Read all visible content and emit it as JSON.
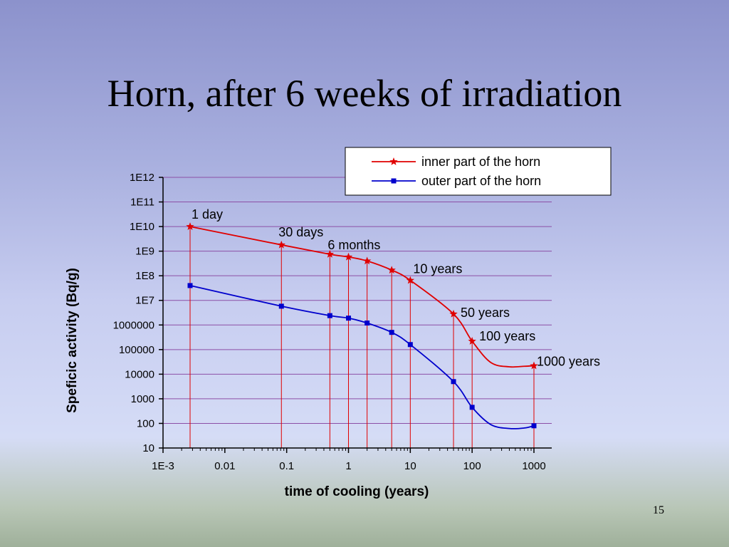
{
  "slide": {
    "title": "Horn, after 6 weeks of irradiation",
    "page_number": "15"
  },
  "chart_data": {
    "type": "line",
    "xscale": "log",
    "yscale": "log",
    "xlabel": "time of cooling (years)",
    "ylabel": "Speficic activity (Bq/g)",
    "xlim": [
      0.001,
      1000
    ],
    "ylim": [
      10,
      1000000000000.0
    ],
    "x_tick_values": [
      0.001,
      0.01,
      0.1,
      1,
      10,
      100,
      1000
    ],
    "x_tick_labels": [
      "1E-3",
      "0.01",
      "0.1",
      "1",
      "10",
      "100",
      "1000"
    ],
    "y_tick_values": [
      10,
      100,
      1000,
      10000,
      100000,
      1000000,
      10000000.0,
      100000000.0,
      1000000000.0,
      10000000000.0,
      100000000000.0,
      1000000000000.0
    ],
    "y_tick_labels": [
      "10",
      "100",
      "1000",
      "10000",
      "100000",
      "1000000",
      "1E7",
      "1E8",
      "1E9",
      "1E10",
      "1E11",
      "1E12"
    ],
    "grid": {
      "horizontal": true,
      "color": "#8c4fa6"
    },
    "legend_position": "top-right",
    "series": [
      {
        "name": "inner part of the horn",
        "color": "#e00000",
        "marker": "star",
        "x": [
          0.00274,
          0.0822,
          0.5,
          1,
          2,
          5,
          10,
          50,
          100,
          1000
        ],
        "y": [
          10000000000.0,
          1800000000.0,
          750000000.0,
          580000000.0,
          400000000.0,
          170000000.0,
          65000000.0,
          2800000.0,
          220000.0,
          22000.0
        ],
        "curve_y": [
          10000000000.0,
          1800000000.0,
          750000000.0,
          580000000.0,
          400000000.0,
          170000000.0,
          65000000.0,
          2800000.0,
          220000.0,
          30000.0,
          20000.0,
          21000.0,
          22000.0
        ],
        "curve_x": [
          0.00274,
          0.0822,
          0.5,
          1,
          2,
          5,
          10,
          50,
          100,
          200,
          400,
          700,
          1000
        ]
      },
      {
        "name": "outer part of the horn",
        "color": "#0000cc",
        "marker": "square",
        "x": [
          0.00274,
          0.0822,
          0.5,
          1,
          2,
          5,
          10,
          50,
          100,
          1000
        ],
        "y": [
          40000000.0,
          5800000.0,
          2400000.0,
          1900000.0,
          1200000.0,
          500000.0,
          160000.0,
          5000,
          450,
          80
        ],
        "curve_y": [
          40000000.0,
          5800000.0,
          2400000.0,
          1900000.0,
          1200000.0,
          500000.0,
          160000.0,
          5000,
          450,
          90,
          62,
          65,
          80
        ],
        "curve_x": [
          0.00274,
          0.0822,
          0.5,
          1,
          2,
          5,
          10,
          50,
          100,
          200,
          400,
          700,
          1000
        ]
      }
    ],
    "annotations": [
      {
        "text": "1 day",
        "x": 0.00274
      },
      {
        "text": "30 days",
        "x": 0.0822
      },
      {
        "text": "6 months",
        "x": 0.5
      },
      {
        "text": "10 years",
        "x": 10
      },
      {
        "text": "50 years",
        "x": 50
      },
      {
        "text": "100 years",
        "x": 100
      },
      {
        "text": "1000 years",
        "x": 1000
      }
    ],
    "annotation_line_color": "#e00000",
    "legend_border_color": "#000000"
  }
}
